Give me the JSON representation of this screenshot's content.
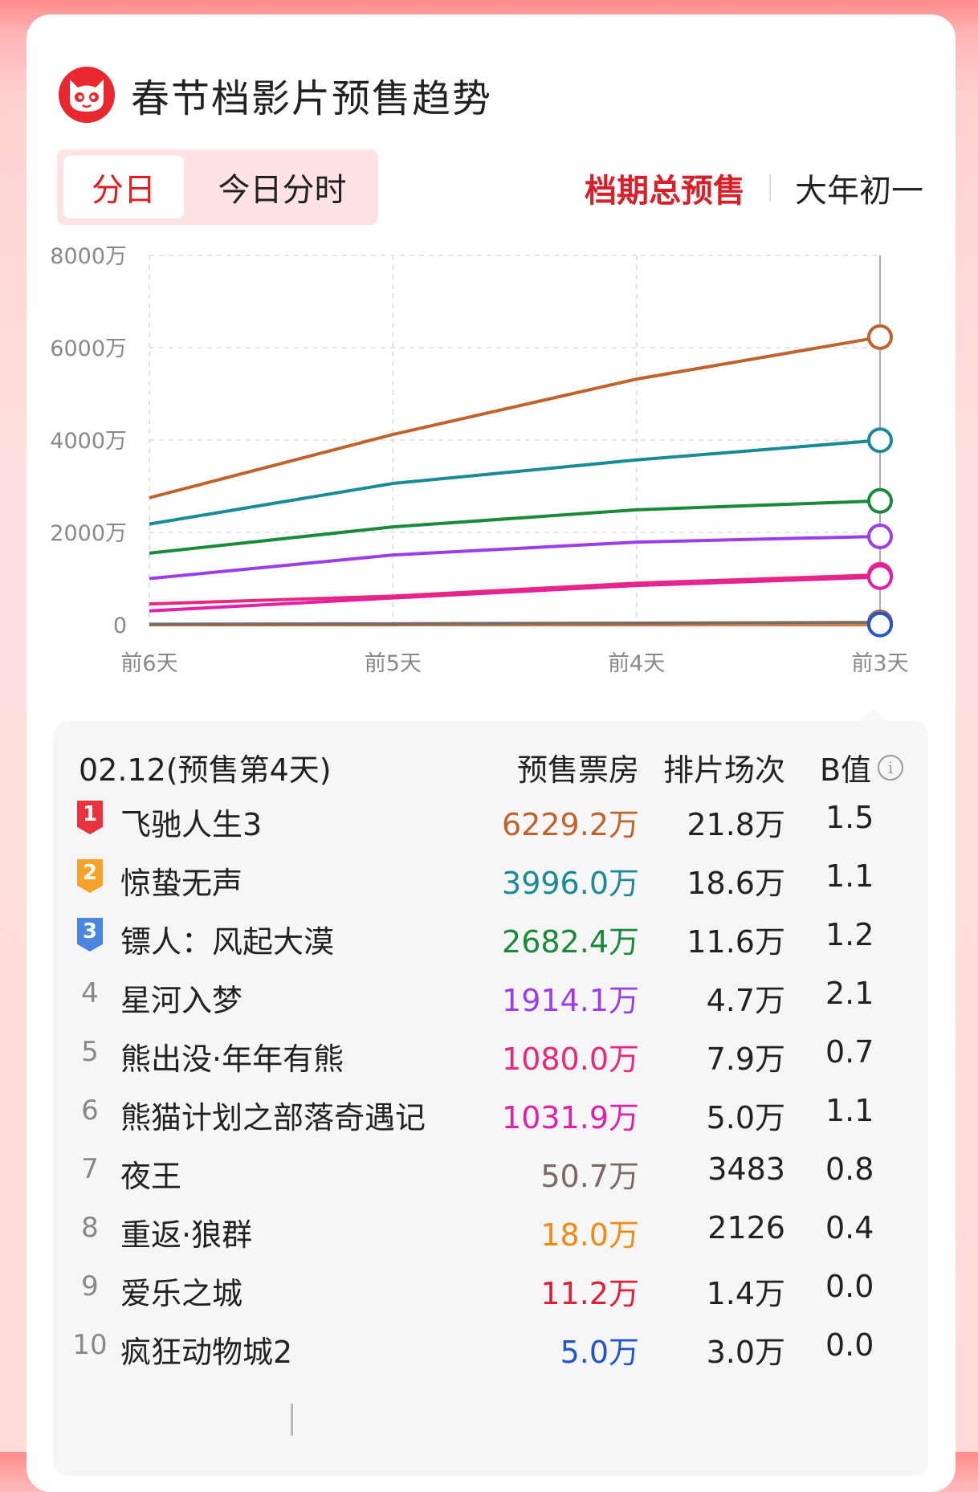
{
  "header": {
    "title": "春节档影片预售趋势"
  },
  "tabs": {
    "left_active": "分日",
    "left_inactive": "今日分时",
    "right_active": "档期总预售",
    "right_inactive": "大年初一"
  },
  "table": {
    "date_label": "02.12(预售第4天)",
    "col_presale": "预售票房",
    "col_shows": "排片场次",
    "col_b": "B值",
    "rows": [
      {
        "rank": "1",
        "name": "飞驰人生3",
        "presale": "6229.2万",
        "shows": "21.8万",
        "b": "1.5",
        "color": "#c0622c",
        "badge": "#e8323c"
      },
      {
        "rank": "2",
        "name": "惊蛰无声",
        "presale": "3996.0万",
        "shows": "18.6万",
        "b": "1.1",
        "color": "#1a8a96",
        "badge": "#f5a12a"
      },
      {
        "rank": "3",
        "name": "镖人：风起大漠",
        "presale": "2682.4万",
        "shows": "11.6万",
        "b": "1.2",
        "color": "#188a3a",
        "badge": "#4a86e0"
      },
      {
        "rank": "4",
        "name": "星河入梦",
        "presale": "1914.1万",
        "shows": "4.7万",
        "b": "2.1",
        "color": "#9b3de8",
        "badge": ""
      },
      {
        "rank": "5",
        "name": "熊出没·年年有熊",
        "presale": "1080.0万",
        "shows": "7.9万",
        "b": "0.7",
        "color": "#e8287a",
        "badge": ""
      },
      {
        "rank": "6",
        "name": "熊猫计划之部落奇遇记",
        "presale": "1031.9万",
        "shows": "5.0万",
        "b": "1.1",
        "color": "#e020a8",
        "badge": ""
      },
      {
        "rank": "7",
        "name": "夜王",
        "presale": "50.7万",
        "shows": "3483",
        "b": "0.8",
        "color": "#7a6a66",
        "badge": ""
      },
      {
        "rank": "8",
        "name": "重返·狼群",
        "presale": "18.0万",
        "shows": "2126",
        "b": "0.4",
        "color": "#f08a12",
        "badge": ""
      },
      {
        "rank": "9",
        "name": "爱乐之城",
        "presale": "11.2万",
        "shows": "1.4万",
        "b": "0.0",
        "color": "#e0203a",
        "badge": ""
      },
      {
        "rank": "10",
        "name": "疯狂动物城2",
        "presale": "5.0万",
        "shows": "3.0万",
        "b": "0.0",
        "color": "#2255cc",
        "badge": ""
      }
    ]
  },
  "chart_data": {
    "type": "line",
    "categories": [
      "前6天",
      "前5天",
      "前4天",
      "前3天"
    ],
    "ytick_labels": [
      "0",
      "2000万",
      "4000万",
      "6000万",
      "8000万"
    ],
    "ylim": [
      0,
      8000
    ],
    "unit": "万",
    "series": [
      {
        "name": "飞驰人生3",
        "color": "#c0622c",
        "values": [
          2750,
          4120,
          5320,
          6229.2
        ]
      },
      {
        "name": "惊蛰无声",
        "color": "#1a8a96",
        "values": [
          2180,
          3060,
          3570,
          3996.0
        ]
      },
      {
        "name": "镖人：风起大漠",
        "color": "#188a3a",
        "values": [
          1550,
          2120,
          2490,
          2682.4
        ]
      },
      {
        "name": "星河入梦",
        "color": "#9b3de8",
        "values": [
          1000,
          1510,
          1790,
          1914.1
        ]
      },
      {
        "name": "熊出没·年年有熊",
        "color": "#e8287a",
        "values": [
          450,
          620,
          900,
          1080.0
        ]
      },
      {
        "name": "熊猫计划之部落奇遇记",
        "color": "#e020a8",
        "values": [
          300,
          580,
          850,
          1031.9
        ]
      },
      {
        "name": "夜王",
        "color": "#7a6a66",
        "values": [
          10,
          20,
          35,
          50.7
        ]
      },
      {
        "name": "重返·狼群",
        "color": "#f08a12",
        "values": [
          3,
          6,
          12,
          18.0
        ]
      },
      {
        "name": "爱乐之城",
        "color": "#e0203a",
        "values": [
          2,
          4,
          7,
          11.2
        ]
      },
      {
        "name": "疯狂动物城2",
        "color": "#2255cc",
        "values": [
          1,
          2,
          3,
          5.0
        ]
      }
    ]
  }
}
